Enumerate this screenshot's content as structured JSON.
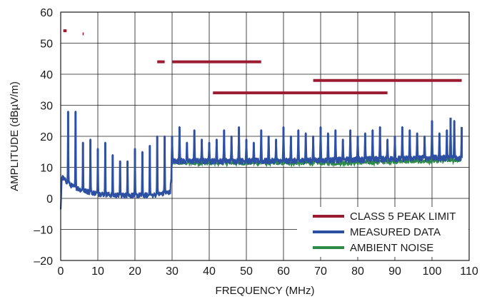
{
  "chart_data": {
    "type": "line",
    "xlabel": "FREQUENCY (MHz)",
    "ylabel": "AMPLITUDE (dBµV/m)",
    "xlim": [
      0,
      110
    ],
    "ylim": [
      -20,
      60
    ],
    "x_ticks": [
      0,
      10,
      20,
      30,
      40,
      50,
      60,
      70,
      80,
      90,
      100,
      110
    ],
    "y_ticks": [
      -20,
      -10,
      0,
      10,
      20,
      30,
      40,
      50,
      60
    ],
    "x_tick_labels": [
      "0",
      "10",
      "20",
      "30",
      "40",
      "50",
      "60",
      "70",
      "80",
      "90",
      "100",
      "110"
    ],
    "y_tick_labels": [
      "–20",
      "–10",
      "0",
      "10",
      "20",
      "30",
      "40",
      "50",
      "60"
    ],
    "grid": true,
    "legend_position": "bottom-right",
    "series": [
      {
        "name": "CLASS 5 PEAK LIMIT",
        "color": "#9b1b30",
        "style": "segments",
        "segments": [
          {
            "x": [
              0.7,
              1.6
            ],
            "y": 54
          },
          {
            "x": [
              5.9,
              6.2
            ],
            "y": 53
          },
          {
            "x": [
              26.0,
              28.0
            ],
            "y": 44
          },
          {
            "x": [
              30.0,
              54.0
            ],
            "y": 44
          },
          {
            "x": [
              41.0,
              88.0
            ],
            "y": 34
          },
          {
            "x": [
              68.0,
              108.0
            ],
            "y": 38
          }
        ]
      },
      {
        "name": "MEASURED DATA",
        "color": "#2e50a3",
        "baseline": [
          {
            "x": 0,
            "y": -4
          },
          {
            "x": 0.3,
            "y": 7
          },
          {
            "x": 1,
            "y": 6
          },
          {
            "x": 3,
            "y": 4
          },
          {
            "x": 6,
            "y": 2.5
          },
          {
            "x": 10,
            "y": 1.5
          },
          {
            "x": 15,
            "y": 1
          },
          {
            "x": 20,
            "y": 1
          },
          {
            "x": 25,
            "y": 1
          },
          {
            "x": 29.5,
            "y": 2
          },
          {
            "x": 30,
            "y": 12
          },
          {
            "x": 40,
            "y": 12
          },
          {
            "x": 60,
            "y": 12
          },
          {
            "x": 80,
            "y": 12.5
          },
          {
            "x": 100,
            "y": 13
          },
          {
            "x": 108,
            "y": 13
          }
        ],
        "peaks": [
          {
            "x": 2,
            "y": 28
          },
          {
            "x": 4,
            "y": 28
          },
          {
            "x": 6,
            "y": 18
          },
          {
            "x": 8,
            "y": 19
          },
          {
            "x": 10,
            "y": 16
          },
          {
            "x": 12,
            "y": 18
          },
          {
            "x": 14,
            "y": 14
          },
          {
            "x": 16,
            "y": 12
          },
          {
            "x": 18,
            "y": 12
          },
          {
            "x": 20,
            "y": 16
          },
          {
            "x": 22,
            "y": 15
          },
          {
            "x": 24,
            "y": 17
          },
          {
            "x": 26,
            "y": 20
          },
          {
            "x": 28,
            "y": 20
          },
          {
            "x": 30,
            "y": 20
          },
          {
            "x": 32,
            "y": 23
          },
          {
            "x": 34,
            "y": 18
          },
          {
            "x": 36,
            "y": 22
          },
          {
            "x": 38,
            "y": 19
          },
          {
            "x": 40,
            "y": 18
          },
          {
            "x": 42,
            "y": 19
          },
          {
            "x": 44,
            "y": 22
          },
          {
            "x": 46,
            "y": 20
          },
          {
            "x": 48,
            "y": 23
          },
          {
            "x": 50,
            "y": 19
          },
          {
            "x": 52,
            "y": 18
          },
          {
            "x": 54,
            "y": 22
          },
          {
            "x": 56,
            "y": 20
          },
          {
            "x": 58,
            "y": 19
          },
          {
            "x": 60,
            "y": 23
          },
          {
            "x": 62,
            "y": 20
          },
          {
            "x": 64,
            "y": 22
          },
          {
            "x": 66,
            "y": 21
          },
          {
            "x": 68,
            "y": 20
          },
          {
            "x": 70,
            "y": 23
          },
          {
            "x": 72,
            "y": 21
          },
          {
            "x": 74,
            "y": 22
          },
          {
            "x": 76,
            "y": 19
          },
          {
            "x": 78,
            "y": 22
          },
          {
            "x": 80,
            "y": 20
          },
          {
            "x": 82,
            "y": 21
          },
          {
            "x": 84,
            "y": 22
          },
          {
            "x": 86,
            "y": 23
          },
          {
            "x": 88,
            "y": 19
          },
          {
            "x": 90,
            "y": 20
          },
          {
            "x": 92,
            "y": 23
          },
          {
            "x": 94,
            "y": 22
          },
          {
            "x": 96,
            "y": 21
          },
          {
            "x": 98,
            "y": 20
          },
          {
            "x": 100,
            "y": 25
          },
          {
            "x": 102,
            "y": 21
          },
          {
            "x": 104,
            "y": 22
          },
          {
            "x": 105,
            "y": 26
          },
          {
            "x": 106,
            "y": 25
          },
          {
            "x": 108,
            "y": 23
          }
        ]
      },
      {
        "name": "AMBIENT NOISE",
        "color": "#2e8b4a",
        "points": [
          {
            "x": 30,
            "y": 11.5
          },
          {
            "x": 40,
            "y": 11.5
          },
          {
            "x": 50,
            "y": 11.5
          },
          {
            "x": 60,
            "y": 11.5
          },
          {
            "x": 70,
            "y": 11.5
          },
          {
            "x": 80,
            "y": 11.5
          },
          {
            "x": 90,
            "y": 12
          },
          {
            "x": 100,
            "y": 12
          },
          {
            "x": 108,
            "y": 12.5
          }
        ]
      }
    ]
  }
}
